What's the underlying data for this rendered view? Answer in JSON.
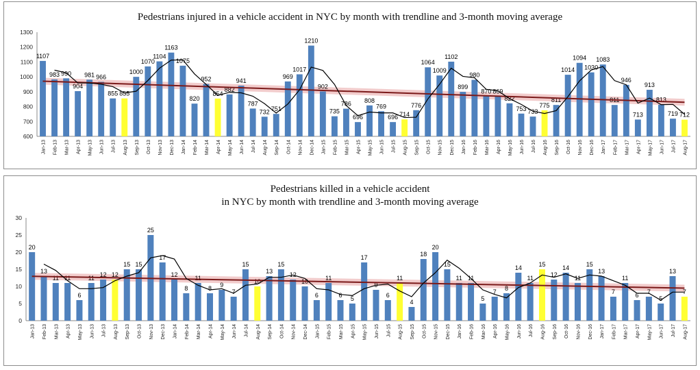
{
  "chart_data": [
    {
      "type": "bar",
      "title": "Pedestrians injured in a vehicle accident in NYC by month with trendline and 3-month moving average",
      "xlabel": "",
      "ylabel": "",
      "ylim": [
        600,
        1300
      ],
      "yticks": [
        600,
        700,
        800,
        900,
        1000,
        1100,
        1200,
        1300
      ],
      "categories": [
        "Jan-13",
        "Feb-13",
        "Mar-13",
        "Apr-13",
        "May-13",
        "Jun-13",
        "Jul-13",
        "Aug-13",
        "Sep-13",
        "Oct-13",
        "Nov-13",
        "Dec-13",
        "Jan-14",
        "Feb-14",
        "Mar-14",
        "Apr-14",
        "May-14",
        "Jun-14",
        "Jul-14",
        "Aug-14",
        "Sep-14",
        "Oct-14",
        "Nov-14",
        "Dec-14",
        "Jan-15",
        "Feb-15",
        "Mar-15",
        "Apr-15",
        "May-15",
        "Jun-15",
        "Jul-15",
        "Aug-15",
        "Sep-15",
        "Oct-15",
        "Nov-15",
        "Dec-15",
        "Jan-16",
        "Feb-16",
        "Mar-16",
        "Apr-16",
        "May-16",
        "Jun-16",
        "Jul-16",
        "Aug-16",
        "Sep-16",
        "Oct-16",
        "Nov-16",
        "Dec-16",
        "Jan-17",
        "Feb-17",
        "Mar-17",
        "Apr-17",
        "May-17",
        "Jun-17",
        "Jul-17",
        "Aug-17"
      ],
      "values": [
        1107,
        983,
        990,
        904,
        981,
        966,
        855,
        855,
        1000,
        1070,
        1104,
        1163,
        1075,
        820,
        952,
        854,
        882,
        941,
        787,
        732,
        751,
        969,
        1017,
        1210,
        902,
        735,
        786,
        696,
        808,
        769,
        696,
        714,
        776,
        1064,
        1009,
        1102,
        899,
        980,
        870,
        869,
        822,
        753,
        733,
        775,
        811,
        1014,
        1094,
        1030,
        1083,
        811,
        946,
        713,
        913,
        813,
        719,
        712
      ],
      "highlighted": [
        "Aug-13",
        "Apr-14",
        "Aug-15",
        "Aug-16",
        "Aug-17"
      ],
      "bar_color": "#4f81bd",
      "highlight_color": "#ffff33",
      "trend_color": "#7b1a1a",
      "moving_average_color": "#000000",
      "series": [
        {
          "name": "Injured",
          "type": "bar"
        },
        {
          "name": "Linear trendline",
          "type": "line"
        },
        {
          "name": "3-month moving average",
          "type": "line"
        }
      ]
    },
    {
      "type": "bar",
      "title_lines": [
        "Pedestrians killed in a vehicle accident",
        "in NYC  by month with trendline and 3-month moving average"
      ],
      "xlabel": "",
      "ylabel": "",
      "ylim": [
        0,
        30
      ],
      "yticks": [
        0,
        5,
        10,
        15,
        20,
        25,
        30
      ],
      "categories": [
        "Jan-13",
        "Feb-13",
        "Mar-13",
        "Apr-13",
        "May-13",
        "Jun-13",
        "Jul-13",
        "Aug-13",
        "Sep-13",
        "Oct-13",
        "Nov-13",
        "Dec-13",
        "Jan-14",
        "Feb-14",
        "Mar-14",
        "Apr-14",
        "May-14",
        "Jun-14",
        "Jul-14",
        "Aug-14",
        "Sep-14",
        "Oct-14",
        "Nov-14",
        "Dec-14",
        "Jan-15",
        "Feb-15",
        "Mar-15",
        "Apr-15",
        "May-15",
        "Jun-15",
        "Jul-15",
        "Aug-15",
        "Sep-15",
        "Oct-15",
        "Nov-15",
        "Dec-15",
        "Jan-16",
        "Feb-16",
        "Mar-16",
        "Apr-16",
        "May-16",
        "Jun-16",
        "Jul-16",
        "Aug-16",
        "Sep-16",
        "Oct-16",
        "Nov-16",
        "Dec-16",
        "Jan-17",
        "Feb-17",
        "Mar-17",
        "Apr-17",
        "May-17",
        "Jun-17",
        "Jul-17",
        "Aug-17"
      ],
      "values": [
        20,
        13,
        11,
        11,
        6,
        11,
        12,
        12,
        15,
        15,
        25,
        17,
        12,
        8,
        11,
        8,
        9,
        7,
        15,
        10,
        13,
        15,
        12,
        10,
        6,
        11,
        6,
        5,
        17,
        9,
        6,
        11,
        4,
        18,
        20,
        15,
        11,
        11,
        5,
        7,
        8,
        14,
        11,
        15,
        12,
        14,
        11,
        15,
        13,
        7,
        11,
        6,
        7,
        5,
        13,
        7
      ],
      "highlighted": [
        "Aug-13",
        "Aug-14",
        "Aug-15",
        "Aug-16",
        "Aug-17"
      ],
      "bar_color": "#4f81bd",
      "highlight_color": "#ffff33",
      "trend_color": "#7b1a1a",
      "moving_average_color": "#000000",
      "series": [
        {
          "name": "Killed",
          "type": "bar"
        },
        {
          "name": "Linear trendline",
          "type": "line"
        },
        {
          "name": "3-month moving average",
          "type": "line"
        }
      ]
    }
  ]
}
